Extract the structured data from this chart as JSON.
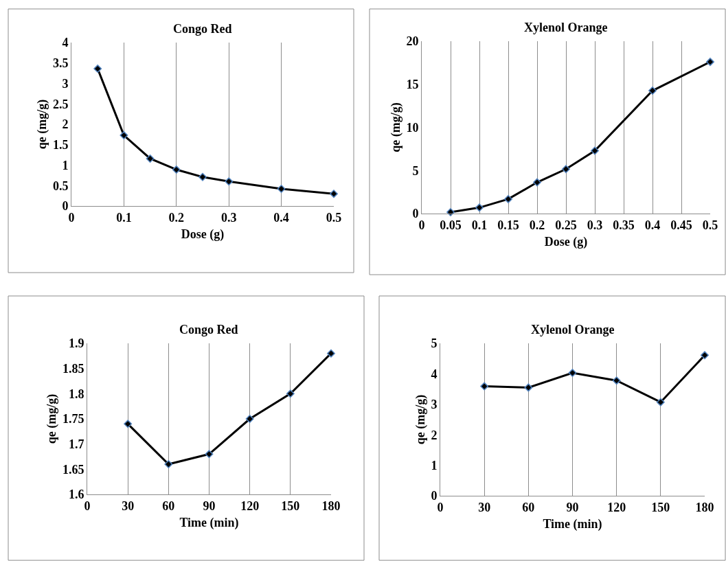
{
  "chart_data": [
    {
      "type": "line",
      "title": "Congo Red",
      "xlabel": "Dose (g)",
      "ylabel": "qe (mg/g)",
      "x": [
        0.05,
        0.1,
        0.15,
        0.2,
        0.25,
        0.3,
        0.4,
        0.5
      ],
      "series": [
        {
          "color": "#000000",
          "values": [
            3.36,
            1.73,
            1.16,
            0.89,
            0.71,
            0.6,
            0.42,
            0.3
          ]
        }
      ],
      "xlim": [
        0,
        0.5
      ],
      "xticks": [
        0,
        0.1,
        0.2,
        0.3,
        0.4,
        0.5
      ],
      "ylim": [
        0,
        4
      ],
      "yticks": [
        0,
        0.5,
        1,
        1.5,
        2,
        2.5,
        3,
        3.5,
        4
      ],
      "grid": "x",
      "marker": "diamond",
      "line_style": "solid"
    },
    {
      "type": "line",
      "title": "Xylenol Orange",
      "xlabel": "Dose (g)",
      "ylabel": "qe (mg/g)",
      "x": [
        0.05,
        0.1,
        0.15,
        0.2,
        0.25,
        0.3,
        0.4,
        0.5
      ],
      "series": [
        {
          "color": "#000000",
          "values": [
            0.16,
            0.69,
            1.68,
            3.62,
            5.16,
            7.29,
            14.26,
            17.6
          ]
        }
      ],
      "xlim": [
        0,
        0.5
      ],
      "xticks": [
        0,
        0.05,
        0.1,
        0.15,
        0.2,
        0.25,
        0.3,
        0.35,
        0.4,
        0.45,
        0.5
      ],
      "ylim": [
        0,
        20
      ],
      "yticks": [
        0,
        5,
        10,
        15,
        20
      ],
      "grid": "x",
      "marker": "diamond",
      "line_style": "solid"
    },
    {
      "type": "line",
      "title": "Congo Red",
      "xlabel": "Time (min)",
      "ylabel": "qe (mg/g)",
      "x": [
        30,
        60,
        90,
        120,
        150,
        180
      ],
      "series": [
        {
          "color": "#000000",
          "values": [
            1.74,
            1.66,
            1.68,
            1.75,
            1.8,
            1.88
          ]
        }
      ],
      "xlim": [
        0,
        180
      ],
      "xticks": [
        0,
        30,
        60,
        90,
        120,
        150,
        180
      ],
      "ylim": [
        1.6,
        1.9
      ],
      "yticks": [
        1.6,
        1.65,
        1.7,
        1.75,
        1.8,
        1.85,
        1.9
      ],
      "grid": "x",
      "marker": "diamond",
      "line_style": "solid"
    },
    {
      "type": "line",
      "title": "Xylenol Orange",
      "xlabel": "Time (min)",
      "ylabel": "qe (mg/g)",
      "x": [
        30,
        60,
        90,
        120,
        150,
        180
      ],
      "series": [
        {
          "color": "#000000",
          "values": [
            3.59,
            3.55,
            4.03,
            3.78,
            3.07,
            4.61
          ]
        }
      ],
      "xlim": [
        0,
        180
      ],
      "xticks": [
        0,
        30,
        60,
        90,
        120,
        150,
        180
      ],
      "ylim": [
        0,
        5
      ],
      "yticks": [
        0,
        1,
        2,
        3,
        4,
        5
      ],
      "grid": "x",
      "marker": "diamond",
      "line_style": "solid"
    }
  ]
}
